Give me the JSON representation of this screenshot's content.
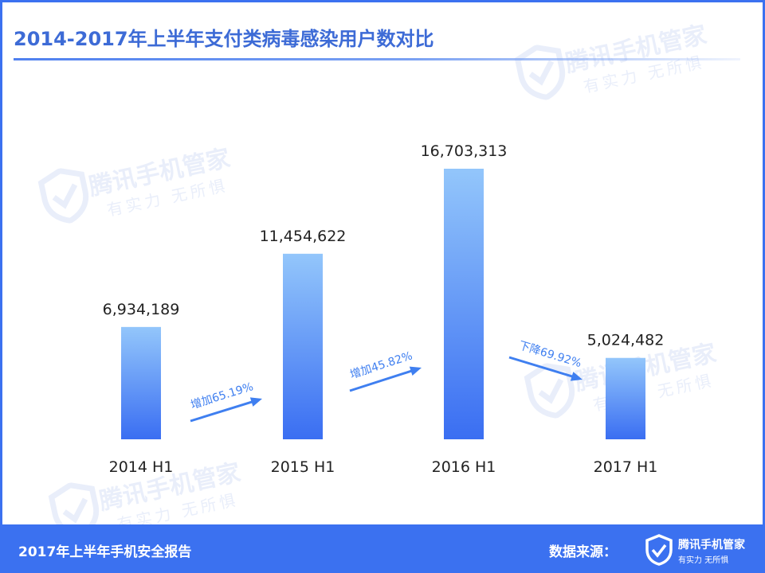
{
  "title": "2014-2017年上半年支付类病毒感染用户数对比",
  "watermark": {
    "brand": "腾讯手机管家",
    "slogan": "有实力 无所惧"
  },
  "footer": {
    "report": "2017年上半年手机安全报告",
    "source_label": "数据来源：",
    "logo_name": "腾讯手机管家",
    "logo_slogan": "有实力 无所惧"
  },
  "colors": {
    "accent": "#3b71f0",
    "bar_top": "#93c6fb",
    "bar_bottom": "#3a6ef2",
    "arrow": "#3f7ff0",
    "title": "#3d6bd6"
  },
  "chart_data": {
    "type": "bar",
    "title": "2014-2017年上半年支付类病毒感染用户数对比",
    "categories": [
      "2014 H1",
      "2015 H1",
      "2016 H1",
      "2017 H1"
    ],
    "values": [
      6934189,
      11454622,
      16703313,
      5024482
    ],
    "value_labels": [
      "6,934,189",
      "11,454,622",
      "16,703,313",
      "5,024,482"
    ],
    "changes": [
      {
        "from": 0,
        "to": 1,
        "label": "增加65.19%"
      },
      {
        "from": 1,
        "to": 2,
        "label": "增加45.82%"
      },
      {
        "from": 2,
        "to": 3,
        "label": "下降69.92%"
      }
    ],
    "ylim": [
      0,
      16703313
    ],
    "grid": false,
    "legend": "none"
  }
}
